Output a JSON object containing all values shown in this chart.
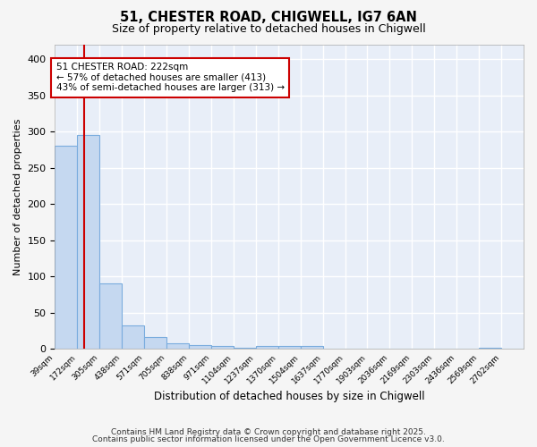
{
  "title1": "51, CHESTER ROAD, CHIGWELL, IG7 6AN",
  "title2": "Size of property relative to detached houses in Chigwell",
  "xlabel": "Distribution of detached houses by size in Chigwell",
  "ylabel": "Number of detached properties",
  "bar_values": [
    280,
    295,
    90,
    32,
    17,
    8,
    6,
    4,
    2,
    4,
    4,
    4,
    0,
    0,
    0,
    0,
    0,
    0,
    0,
    2,
    0
  ],
  "x_tick_labels": [
    "39sqm",
    "172sqm",
    "305sqm",
    "438sqm",
    "571sqm",
    "705sqm",
    "838sqm",
    "971sqm",
    "1104sqm",
    "1237sqm",
    "1370sqm",
    "1504sqm",
    "1637sqm",
    "1770sqm",
    "1903sqm",
    "2036sqm",
    "2169sqm",
    "2303sqm",
    "2436sqm",
    "2569sqm",
    "2702sqm"
  ],
  "bar_color": "#c5d8f0",
  "bar_edge_color": "#7aacde",
  "ref_line_color": "#cc0000",
  "annotation_text": "51 CHESTER ROAD: 222sqm\n← 57% of detached houses are smaller (413)\n43% of semi-detached houses are larger (313) →",
  "annotation_box_color": "#ffffff",
  "annotation_box_edge": "#cc0000",
  "ylim": [
    0,
    420
  ],
  "yticks": [
    0,
    50,
    100,
    150,
    200,
    250,
    300,
    350,
    400
  ],
  "bg_color": "#e8eef8",
  "grid_color": "#ffffff",
  "fig_bg_color": "#f5f5f5",
  "footer_line1": "Contains HM Land Registry data © Crown copyright and database right 2025.",
  "footer_line2": "Contains public sector information licensed under the Open Government Licence v3.0.",
  "ref_bar_index": 1.3
}
